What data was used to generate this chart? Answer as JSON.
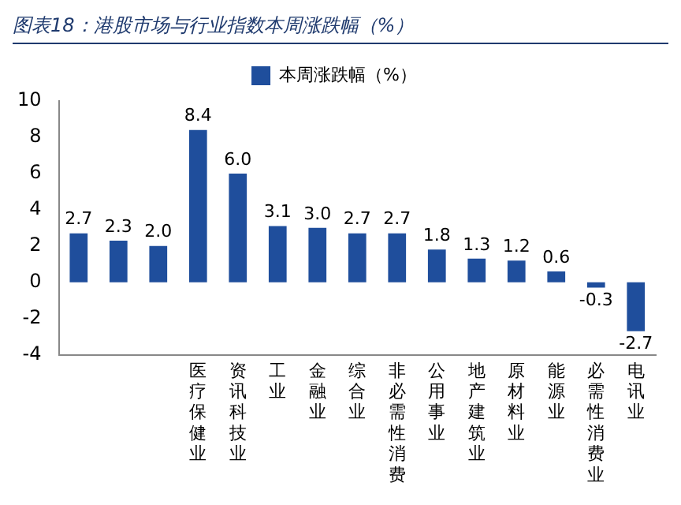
{
  "chart_data": {
    "type": "bar",
    "title": "图表18：港股市场与行业指数本周涨跌幅（%）",
    "categories": [
      null,
      null,
      null,
      "医疗保健业",
      "资讯科技业",
      "工业",
      "金融业",
      "综合业",
      "非必需性消费",
      "公用事业",
      "地产建筑业",
      "原材料业",
      "能源业",
      "必需性消费业",
      "电讯业"
    ],
    "series": [
      {
        "name": "本周涨跌幅（%）",
        "color": "#1f4e9c",
        "values": [
          2.7,
          2.3,
          2.0,
          8.4,
          6.0,
          3.1,
          3.0,
          2.7,
          2.7,
          1.8,
          1.3,
          1.2,
          0.6,
          -0.3,
          -2.7
        ],
        "value_labels": [
          "2.7",
          "2.3",
          "2.0",
          "8.4",
          "6.0",
          "3.1",
          "3.0",
          "2.7",
          "2.7",
          "1.8",
          "1.3",
          "1.2",
          "0.6",
          "-0.3",
          "-2.7"
        ]
      }
    ],
    "ylim": [
      -4,
      10
    ],
    "yticks": [
      -4,
      -2,
      0,
      2,
      4,
      6,
      8,
      10
    ],
    "grid": false,
    "legend": "top"
  }
}
